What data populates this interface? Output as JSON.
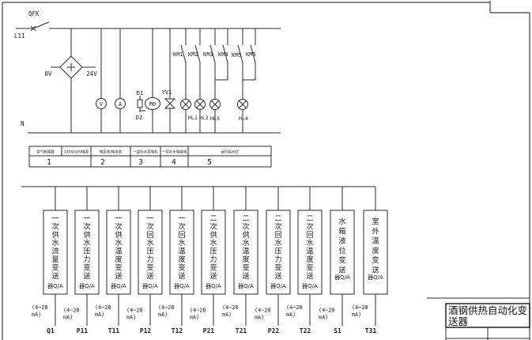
{
  "circuit": {
    "breaker_label": "QFK",
    "line_label": "L11",
    "neutral_label": "N",
    "supply": {
      "left_terminal": "0V",
      "right_terminal": "24V"
    },
    "voltmeter": "V",
    "ammeter": "A",
    "motor": "M0",
    "diode_top": "D1",
    "diode_bottom": "D2",
    "valve": "YV1",
    "contactors": [
      "KM1",
      "KM2",
      "KM3",
      "KM4",
      "KM5",
      "KM6"
    ],
    "lamps": [
      "HL1",
      "HL2",
      "HL3",
      "HL4"
    ]
  },
  "legend": {
    "headers": [
      "空气断路器",
      "220V/24V电源",
      "电压表/电流表",
      "一次补水泵电机",
      "一次补水电磁阀",
      "运行指示灯"
    ],
    "numbers": [
      "1",
      "2",
      "3",
      "4",
      "5"
    ]
  },
  "transmitters": {
    "range_line1": "(4~20",
    "range_line2": "mA)",
    "suffix": "器Q/A",
    "items": [
      {
        "label": "一次供水流量变送",
        "tag": "Q1"
      },
      {
        "label": "一次供水压力变送",
        "tag": "P11"
      },
      {
        "label": "一次供水温度变送",
        "tag": "T11"
      },
      {
        "label": "一次回水压力变送",
        "tag": "P12"
      },
      {
        "label": "一次回水温度变送",
        "tag": "T12"
      },
      {
        "label": "二次供水压力变送",
        "tag": "P21"
      },
      {
        "label": "二次供水温度变送",
        "tag": "T21"
      },
      {
        "label": "二次回水压力变送",
        "tag": "P22"
      },
      {
        "label": "二次回水温度变送",
        "tag": "T22"
      },
      {
        "label": "水箱液位变送",
        "tag": "S1"
      },
      {
        "label": "室外温度变送",
        "tag": "T31"
      }
    ]
  },
  "title_block": {
    "title": "酒钢供热自动化变送器"
  }
}
